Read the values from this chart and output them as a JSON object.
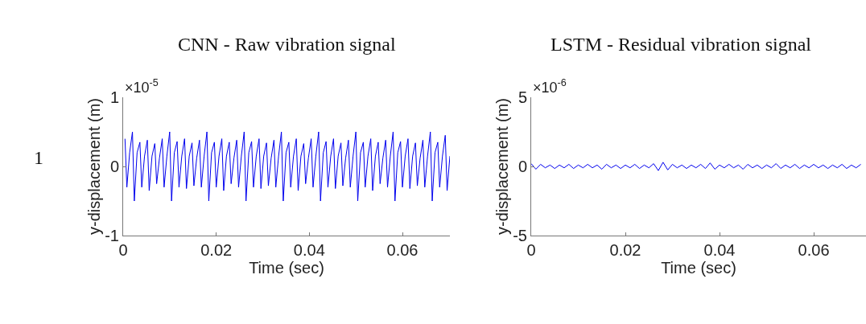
{
  "chart_data": [
    {
      "type": "line",
      "title": "CNN - Raw vibration signal",
      "xlabel": "Time (sec)",
      "ylabel": "y-displacement (m)",
      "annotations": [
        "1",
        "×10$^{-5}$"
      ],
      "xlim": [
        0,
        0.0702
      ],
      "xticks": [
        0,
        0.02,
        0.04,
        0.06
      ],
      "ylim": [
        -1,
        1
      ],
      "yticks": [
        -1,
        0,
        1
      ],
      "marker": "none",
      "line_style": "solid",
      "x": [
        0.0004,
        0.0008,
        0.0014,
        0.002,
        0.0024,
        0.003,
        0.0036,
        0.004,
        0.0046,
        0.0052,
        0.0056,
        0.0062,
        0.0068,
        0.0072,
        0.0078,
        0.0084,
        0.0088,
        0.0094,
        0.01,
        0.0104,
        0.011,
        0.0116,
        0.012,
        0.0126,
        0.0132,
        0.0136,
        0.0142,
        0.0148,
        0.0152,
        0.0158,
        0.0164,
        0.0168,
        0.0174,
        0.018,
        0.0184,
        0.019,
        0.0196,
        0.02,
        0.0206,
        0.0212,
        0.0216,
        0.0222,
        0.0228,
        0.0232,
        0.0238,
        0.0244,
        0.0248,
        0.0254,
        0.026,
        0.0264,
        0.027,
        0.0276,
        0.028,
        0.0286,
        0.0292,
        0.0296,
        0.0302,
        0.0308,
        0.0312,
        0.0318,
        0.0324,
        0.0328,
        0.0334,
        0.034,
        0.0344,
        0.035,
        0.0356,
        0.036,
        0.0366,
        0.0372,
        0.0376,
        0.0382,
        0.0388,
        0.0392,
        0.0398,
        0.0404,
        0.0408,
        0.0414,
        0.042,
        0.0424,
        0.043,
        0.0436,
        0.044,
        0.0446,
        0.0452,
        0.0456,
        0.0462,
        0.0468,
        0.0472,
        0.0478,
        0.0484,
        0.0488,
        0.0494,
        0.05,
        0.0504,
        0.051,
        0.0516,
        0.052,
        0.0526,
        0.0532,
        0.0536,
        0.0542,
        0.0548,
        0.0552,
        0.0558,
        0.0564,
        0.0568,
        0.0574,
        0.058,
        0.0584,
        0.059,
        0.0596,
        0.06,
        0.0606,
        0.0612,
        0.0616,
        0.0622,
        0.0628,
        0.0632,
        0.0638,
        0.0644,
        0.0648,
        0.0654,
        0.066,
        0.0664,
        0.067,
        0.0676,
        0.068,
        0.0686,
        0.0692,
        0.0696,
        0.0702
      ],
      "series": [
        {
          "color": "#0000ee",
          "values": [
            0.4,
            -0.3,
            0.2,
            0.5,
            -0.5,
            0.2,
            0.35,
            -0.3,
            0.15,
            0.38,
            -0.35,
            0.15,
            0.33,
            -0.25,
            0.12,
            0.4,
            -0.3,
            0.15,
            0.5,
            -0.5,
            0.2,
            0.36,
            -0.3,
            0.15,
            0.4,
            -0.32,
            0.15,
            0.34,
            -0.28,
            0.12,
            0.38,
            -0.3,
            0.15,
            0.5,
            -0.5,
            0.2,
            0.35,
            -0.3,
            0.15,
            0.4,
            -0.35,
            0.15,
            0.35,
            -0.25,
            0.12,
            0.38,
            -0.3,
            0.15,
            0.5,
            -0.5,
            0.2,
            0.36,
            -0.3,
            0.15,
            0.4,
            -0.32,
            0.15,
            0.34,
            -0.28,
            0.12,
            0.38,
            -0.3,
            0.15,
            0.5,
            -0.5,
            0.2,
            0.35,
            -0.3,
            0.15,
            0.4,
            -0.35,
            0.15,
            0.33,
            -0.25,
            0.12,
            0.4,
            -0.3,
            0.15,
            0.5,
            -0.5,
            0.2,
            0.36,
            -0.3,
            0.15,
            0.4,
            -0.32,
            0.15,
            0.34,
            -0.28,
            0.12,
            0.38,
            -0.3,
            0.15,
            0.5,
            -0.5,
            0.2,
            0.35,
            -0.3,
            0.15,
            0.4,
            -0.35,
            0.15,
            0.35,
            -0.25,
            0.12,
            0.38,
            -0.3,
            0.15,
            0.5,
            -0.5,
            0.2,
            0.36,
            -0.3,
            0.15,
            0.4,
            -0.32,
            0.15,
            0.34,
            -0.28,
            0.12,
            0.38,
            -0.3,
            0.15,
            0.5,
            -0.5,
            0.2,
            0.35,
            -0.3,
            0.15,
            0.45,
            -0.35,
            0.15
          ]
        }
      ]
    },
    {
      "type": "line",
      "title": "LSTM - Residual vibration signal",
      "xlabel": "Time (sec)",
      "ylabel": "y-displacement (m)",
      "annotations": [
        "×10$^{-6}$"
      ],
      "xlim": [
        0,
        0.0711
      ],
      "xticks": [
        0,
        0.02,
        0.04,
        0.06
      ],
      "ylim": [
        -5,
        5
      ],
      "yticks": [
        -5,
        0,
        5
      ],
      "marker": "none",
      "line_style": "solid",
      "x": [
        0.0,
        0.001,
        0.002,
        0.003,
        0.004,
        0.005,
        0.006,
        0.007,
        0.008,
        0.009,
        0.01,
        0.011,
        0.012,
        0.013,
        0.014,
        0.015,
        0.016,
        0.017,
        0.018,
        0.019,
        0.02,
        0.021,
        0.022,
        0.023,
        0.024,
        0.025,
        0.026,
        0.027,
        0.028,
        0.029,
        0.03,
        0.031,
        0.032,
        0.033,
        0.034,
        0.035,
        0.036,
        0.037,
        0.038,
        0.039,
        0.04,
        0.041,
        0.042,
        0.043,
        0.044,
        0.045,
        0.046,
        0.047,
        0.048,
        0.049,
        0.05,
        0.051,
        0.052,
        0.053,
        0.054,
        0.055,
        0.056,
        0.057,
        0.058,
        0.059,
        0.06,
        0.061,
        0.062,
        0.063,
        0.064,
        0.065,
        0.066,
        0.067,
        0.068,
        0.069,
        0.07
      ],
      "series": [
        {
          "color": "#0000ee",
          "values": [
            0.2,
            -0.2,
            0.15,
            -0.1,
            0.1,
            -0.15,
            0.1,
            -0.1,
            0.15,
            -0.15,
            0.1,
            -0.1,
            0.15,
            -0.1,
            0.1,
            -0.2,
            0.15,
            -0.1,
            0.1,
            -0.15,
            0.1,
            -0.1,
            0.15,
            -0.15,
            0.1,
            -0.1,
            0.2,
            -0.3,
            0.3,
            -0.25,
            0.15,
            -0.1,
            0.1,
            -0.15,
            0.1,
            -0.1,
            0.15,
            -0.15,
            0.25,
            -0.2,
            0.1,
            -0.1,
            0.15,
            -0.1,
            0.1,
            -0.2,
            0.15,
            -0.1,
            0.1,
            -0.15,
            0.1,
            -0.1,
            0.2,
            -0.15,
            0.1,
            -0.1,
            0.15,
            -0.15,
            0.1,
            -0.1,
            0.15,
            -0.1,
            0.1,
            -0.15,
            0.1,
            -0.1,
            0.15,
            -0.15,
            0.1,
            -0.1,
            0.15
          ]
        }
      ]
    }
  ]
}
